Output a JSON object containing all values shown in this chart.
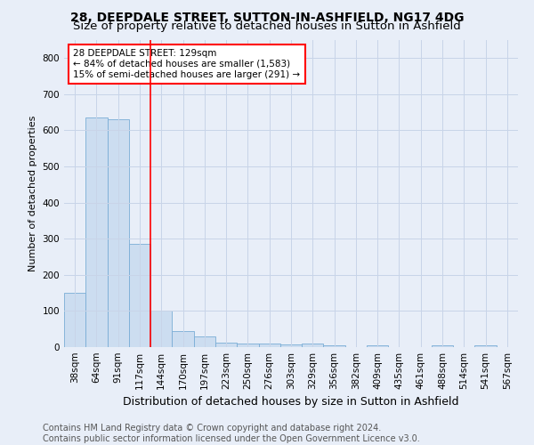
{
  "title": "28, DEEPDALE STREET, SUTTON-IN-ASHFIELD, NG17 4DG",
  "subtitle": "Size of property relative to detached houses in Sutton in Ashfield",
  "xlabel": "Distribution of detached houses by size in Sutton in Ashfield",
  "ylabel": "Number of detached properties",
  "categories": [
    "38sqm",
    "64sqm",
    "91sqm",
    "117sqm",
    "144sqm",
    "170sqm",
    "197sqm",
    "223sqm",
    "250sqm",
    "276sqm",
    "303sqm",
    "329sqm",
    "356sqm",
    "382sqm",
    "409sqm",
    "435sqm",
    "461sqm",
    "488sqm",
    "514sqm",
    "541sqm",
    "567sqm"
  ],
  "values": [
    150,
    635,
    630,
    285,
    102,
    45,
    30,
    12,
    10,
    10,
    8,
    10,
    5,
    0,
    5,
    0,
    0,
    5,
    0,
    5,
    0
  ],
  "bar_color": "#ccddf0",
  "bar_edge_color": "#7aadd6",
  "grid_color": "#c8d4e8",
  "background_color": "#e8eef8",
  "red_line_x": 3.5,
  "annotation_line1": "28 DEEPDALE STREET: 129sqm",
  "annotation_line2": "← 84% of detached houses are smaller (1,583)",
  "annotation_line3": "15% of semi-detached houses are larger (291) →",
  "annotation_box_color": "white",
  "annotation_border_color": "red",
  "ylim": [
    0,
    850
  ],
  "yticks": [
    0,
    100,
    200,
    300,
    400,
    500,
    600,
    700,
    800
  ],
  "footer1": "Contains HM Land Registry data © Crown copyright and database right 2024.",
  "footer2": "Contains public sector information licensed under the Open Government Licence v3.0.",
  "title_fontsize": 10,
  "subtitle_fontsize": 9.5,
  "xlabel_fontsize": 9,
  "ylabel_fontsize": 8,
  "tick_fontsize": 7.5,
  "annotation_fontsize": 7.5,
  "footer_fontsize": 7
}
